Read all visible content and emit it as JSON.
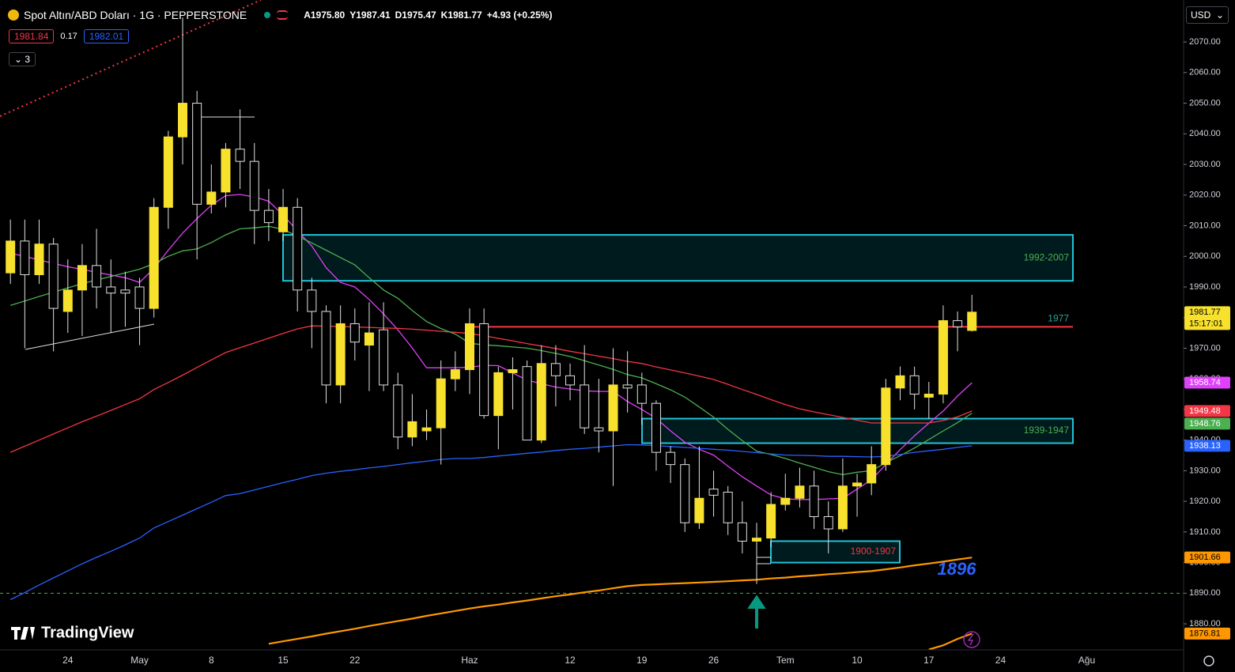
{
  "header": {
    "symbol": "Spot Altın/ABD Doları · 1G · PEPPERSTONE",
    "ohlc": [
      "A1975.80",
      "Y1987.41",
      "D1975.47",
      "K1981.77",
      "+4.93 (+0.25%)"
    ],
    "bid": "1981.84",
    "spread": "0.17",
    "ask": "1982.01",
    "indicators": "3",
    "currency": "USD",
    "logo": "TradingView"
  },
  "chart_data": {
    "type": "candlestick",
    "categories": [
      null,
      null,
      null,
      null,
      "24",
      null,
      null,
      null,
      null,
      "May",
      null,
      null,
      null,
      null,
      "8",
      null,
      null,
      null,
      null,
      "15",
      null,
      null,
      null,
      null,
      "22",
      null,
      null,
      null,
      null,
      null,
      null,
      null,
      "Haz",
      null,
      null,
      null,
      null,
      null,
      null,
      "12",
      null,
      null,
      null,
      null,
      "19",
      null,
      null,
      null,
      null,
      "26",
      null,
      null,
      null,
      null,
      "Tem",
      null,
      null,
      null,
      null,
      "10",
      null,
      null,
      null,
      null,
      "17",
      null,
      null,
      null,
      null,
      "24",
      null,
      null,
      null,
      null,
      null,
      "Ağu",
      null,
      null,
      null,
      null,
      null,
      null
    ],
    "open": [
      1994.6,
      2005,
      1994,
      2004,
      1982,
      1989,
      1997,
      1990,
      1989,
      1990,
      1983,
      2016,
      2039,
      2050,
      2017,
      2021,
      2035,
      2031,
      2015,
      2008,
      2016,
      1989,
      1982,
      1958,
      1978,
      1971,
      1976,
      1958,
      1941,
      1943,
      1944,
      1960,
      1963,
      1978,
      1948,
      1962,
      1964,
      1940,
      1965,
      1961,
      1958,
      1944,
      1943,
      1958,
      1958,
      1952,
      1936,
      1932,
      1913,
      1924,
      1923,
      1913,
      1907,
      1908,
      1919,
      1921,
      1925,
      1915,
      1911,
      1925,
      1926,
      1932,
      1957,
      1961,
      1954,
      1955,
      1979,
      1975.8,
      null,
      null,
      null,
      null,
      null,
      null,
      null,
      null,
      null,
      null,
      null,
      null,
      null,
      null
    ],
    "high": [
      2012,
      2012,
      2012,
      2006,
      1999,
      2004,
      2009,
      1999,
      1995,
      1993,
      2019,
      2041,
      2078,
      2054,
      2030,
      2037,
      2048,
      2037,
      2022,
      2022,
      2019,
      1993,
      1984,
      1984,
      1983,
      1985,
      1985,
      1962,
      1955,
      1950,
      1966,
      1969,
      1983,
      1983,
      1964,
      1967,
      1966,
      1971,
      1971,
      1965,
      1971,
      1960,
      1970,
      1969,
      1962,
      1953,
      1938,
      1934,
      1938,
      1930,
      1925,
      1920,
      1913,
      1923,
      1929,
      1931,
      1930,
      1920,
      1934,
      1929,
      1938,
      1960,
      1964,
      1964,
      1959,
      1984,
      1982,
      1987.41,
      null,
      null,
      null,
      null,
      null,
      null,
      null,
      null,
      null,
      null,
      null,
      null,
      null,
      null
    ],
    "low": [
      1991,
      1970,
      1991,
      1969,
      1975,
      1974,
      1983,
      1975,
      1977,
      1971,
      1980,
      2009,
      2030,
      1999,
      2014,
      2016,
      2022,
      2004,
      2005,
      2005,
      1982,
      1970,
      1952,
      1952,
      1966,
      1956,
      1956,
      1937,
      1938,
      1940,
      1932,
      1956,
      1955,
      1947,
      1937,
      1950,
      1940,
      1939,
      1951,
      1953,
      1942,
      1936,
      1925,
      1949,
      1945,
      1930,
      1926,
      1910,
      1911,
      1915,
      1909,
      1903,
      1893,
      1905,
      1917,
      1918,
      1911,
      1903,
      1910,
      1915,
      1922,
      1930,
      1953,
      1950,
      1947,
      1952,
      1969,
      1975.47,
      null,
      null,
      null,
      null,
      null,
      null,
      null,
      null,
      null,
      null,
      null,
      null,
      null,
      null
    ],
    "close": [
      2005,
      1994,
      2004,
      1983,
      1989,
      1997,
      1990,
      1988,
      1988,
      1983,
      2016,
      2039,
      2050,
      2017,
      2021,
      2035,
      2031,
      2015,
      2011,
      2016,
      1989,
      1982,
      1958,
      1978,
      1972,
      1975,
      1958,
      1941,
      1946,
      1944,
      1960,
      1963,
      1978,
      1948,
      1962,
      1963,
      1940,
      1965,
      1961,
      1958,
      1944,
      1943,
      1958,
      1957,
      1952,
      1936,
      1932,
      1913,
      1921,
      1922,
      1913,
      1907,
      1908,
      1919,
      1921,
      1925,
      1915,
      1911,
      1925,
      1926,
      1932,
      1957,
      1961,
      1955,
      1955,
      1979,
      1977,
      1981.77,
      null,
      null,
      null,
      null,
      null,
      null,
      null,
      null,
      null,
      null,
      null,
      null,
      null,
      null
    ],
    "up_color": "#f7e12d",
    "down_color": "#000000",
    "wick_color": "#e0e0e0",
    "countdown": "15:17:01",
    "series": [
      {
        "color": "#e040fb",
        "badge_text": "#ffffff",
        "values": [
          2001,
          2000,
          1998.8,
          1997.7,
          1996.6,
          1995.7,
          1994.8,
          1993.9,
          1993,
          1991.5,
          1996,
          2002,
          2007.6,
          2012.3,
          2016.7,
          2019.8,
          2020.2,
          2019.4,
          2018,
          2013.5,
          2008.3,
          2003.4,
          1996.3,
          1991.5,
          1990,
          1985.9,
          1981.2,
          1976,
          1970.1,
          1963.6,
          1963.6,
          1963.6,
          1963.8,
          1964.4,
          1964.3,
          1961.9,
          1959.6,
          1958.4,
          1957.3,
          1956.7,
          1956.1,
          1955.9,
          1955.9,
          1952.6,
          1950,
          1947.1,
          1943,
          1939.3,
          1937,
          1935.1,
          1931.5,
          1928,
          1925,
          1922.1,
          1920.8,
          1920.6,
          1920.6,
          1920.8,
          1921,
          1924,
          1927,
          1932,
          1936.9,
          1941.4,
          1945.5,
          1949.5,
          1954.4,
          1958.74,
          null,
          null,
          null,
          null,
          null,
          null,
          null,
          null,
          null,
          null,
          null,
          null,
          null,
          null
        ]
      },
      {
        "color": "#f23645",
        "badge_text": "#ffffff",
        "values": [
          1936,
          1938,
          1940,
          1942,
          1944,
          1946,
          1947.8,
          1949.7,
          1951.6,
          1953.5,
          1956.5,
          1958.8,
          1961.2,
          1963.7,
          1966.2,
          1968.6,
          1970.2,
          1971.7,
          1973.3,
          1974.8,
          1976.3,
          1977.3,
          1977.2,
          1977.1,
          1976.9,
          1976.8,
          1976.6,
          1976.5,
          1976.2,
          1975.9,
          1975.5,
          1975.2,
          1974.8,
          1974.1,
          1973.2,
          1972.4,
          1971.5,
          1970.7,
          1969.9,
          1969,
          1968.2,
          1967.4,
          1966.6,
          1965.7,
          1965,
          1963.9,
          1962.9,
          1961.9,
          1960.9,
          1959.8,
          1958.2,
          1956.5,
          1954.9,
          1953.2,
          1951.6,
          1950.2,
          1949.2,
          1948.3,
          1947.4,
          1946.5,
          1945.6,
          1945.6,
          1945.6,
          1945.6,
          1945.6,
          1946.4,
          1947.6,
          1949.48,
          null,
          null,
          null,
          null,
          null,
          null,
          null,
          null,
          null,
          null,
          null,
          null,
          null,
          null
        ]
      },
      {
        "color": "#4caf50",
        "badge_text": "#ffffff",
        "values": [
          1984,
          1985.4,
          1986.9,
          1988.3,
          1989.7,
          1991.1,
          1992.3,
          1993.4,
          1994.6,
          1995.8,
          1997.6,
          2000,
          2001.8,
          2002.4,
          2004.5,
          2007,
          2009,
          2009.3,
          2009.8,
          2008.8,
          2006.6,
          2004.4,
          2002,
          1999.6,
          1997.2,
          1993,
          1989,
          1986.3,
          1982.3,
          1978.7,
          1976.4,
          1974.6,
          1971.6,
          1971.1,
          1970.8,
          1970.4,
          1970,
          1969.2,
          1968.3,
          1967.3,
          1965.9,
          1964.5,
          1963.1,
          1961.4,
          1960.3,
          1958.4,
          1956.4,
          1954,
          1950.8,
          1947.5,
          1943.5,
          1939.8,
          1936.4,
          1935.3,
          1934,
          1932.5,
          1931.1,
          1929.7,
          1928.7,
          1929.5,
          1930,
          1932.6,
          1934.9,
          1937.4,
          1940.2,
          1943,
          1945.7,
          1948.76,
          null,
          null,
          null,
          null,
          null,
          null,
          null,
          null,
          null,
          null,
          null,
          null,
          null,
          null
        ]
      },
      {
        "color": "#2962ff",
        "badge_text": "#ffffff",
        "values": [
          1887.9,
          1890.2,
          1892.7,
          1895,
          1897.3,
          1899.6,
          1901.7,
          1903.7,
          1905.8,
          1908,
          1911.3,
          1913.4,
          1915.5,
          1917.6,
          1919.7,
          1921.9,
          1922.5,
          1923.7,
          1924.9,
          1926.1,
          1927.2,
          1928.4,
          1929.2,
          1929.8,
          1930.3,
          1930.9,
          1931.4,
          1932,
          1932.6,
          1933.1,
          1933.7,
          1934,
          1934,
          1934.3,
          1934.8,
          1935.2,
          1935.7,
          1936.1,
          1936.6,
          1937,
          1937.3,
          1937.7,
          1938.1,
          1938.5,
          1938.4,
          1938.2,
          1937.9,
          1937.6,
          1937.3,
          1937,
          1936.7,
          1936.3,
          1935.9,
          1935.5,
          1935.1,
          1935,
          1934.9,
          1934.7,
          1934.7,
          1934.6,
          1934.5,
          1934.7,
          1935.3,
          1936,
          1936.5,
          1937,
          1937.6,
          1938.13,
          null,
          null,
          null,
          null,
          null,
          null,
          null,
          null,
          null,
          null,
          null,
          null,
          null,
          null
        ]
      },
      {
        "color": "#ff9800",
        "badge_text": "#000000",
        "values": [
          null,
          null,
          null,
          null,
          null,
          null,
          null,
          null,
          null,
          null,
          null,
          null,
          null,
          null,
          null,
          null,
          null,
          null,
          1873.5,
          1874.3,
          1875.1,
          1875.9,
          1876.8,
          1877.6,
          1878.4,
          1879.3,
          1880.1,
          1880.9,
          1881.7,
          1882.6,
          1883.4,
          1884.2,
          1885,
          1885.7,
          1886.3,
          1887,
          1887.6,
          1888.3,
          1889,
          1889.6,
          1890.3,
          1890.9,
          1891.6,
          1892.3,
          1892.7,
          1892.9,
          1893.1,
          1893.3,
          1893.5,
          1893.7,
          1893.9,
          1894.2,
          1894.4,
          1894.8,
          1895.1,
          1895.5,
          1895.8,
          1896.2,
          1896.5,
          1896.9,
          1897.2,
          1897.8,
          1898.4,
          1899.1,
          1899.7,
          1900.3,
          1901,
          1901.66,
          null,
          null,
          null,
          null,
          null,
          null,
          null,
          null,
          null,
          null,
          null,
          null,
          null,
          null
        ]
      },
      {
        "color": "#ff9800",
        "badge_text": "#000000",
        "values": [
          null,
          null,
          null,
          null,
          null,
          null,
          null,
          null,
          null,
          null,
          null,
          null,
          null,
          null,
          null,
          null,
          null,
          null,
          null,
          null,
          null,
          null,
          null,
          null,
          null,
          null,
          null,
          null,
          null,
          null,
          null,
          null,
          null,
          null,
          null,
          null,
          null,
          null,
          null,
          null,
          null,
          null,
          null,
          null,
          null,
          null,
          null,
          null,
          null,
          null,
          null,
          null,
          null,
          null,
          null,
          null,
          null,
          null,
          null,
          null,
          null,
          null,
          null,
          null,
          1871.6,
          1873,
          1875.1,
          1876.81,
          null,
          null,
          null,
          null,
          null,
          null,
          null,
          null,
          null,
          null,
          null,
          null,
          null,
          null
        ]
      }
    ],
    "zones": [
      {
        "label": "1992-2007",
        "low": 1992,
        "high": 2007,
        "color": "#22c3d6",
        "text_color": "#4caf50"
      },
      {
        "label": "1939-1947",
        "low": 1939,
        "high": 1947,
        "color": "#22c3d6",
        "text_color": "#4caf50"
      },
      {
        "label": "1900-1907",
        "low": 1900,
        "high": 1907,
        "color": "#22c3d6",
        "text_color": "#f23645"
      }
    ],
    "levels": [
      {
        "value": 1977,
        "color": "#f23645",
        "text_color": "#26a69a",
        "dashed": false
      },
      {
        "value": 1890,
        "color": "#4caf50",
        "dashed": true
      }
    ],
    "annotation": "1896",
    "annotation_color": "#2962ff",
    "ylim": [
      1871.5,
      2083.7
    ],
    "yticks": [
      {
        "value": 1880,
        "label": "1880.00"
      },
      {
        "value": 1890,
        "label": "1890.00"
      },
      {
        "value": 1900,
        "label": "1900.00"
      },
      {
        "value": 1910,
        "label": "1910.00"
      },
      {
        "value": 1920,
        "label": "1920.00"
      },
      {
        "value": 1930,
        "label": "1930.00"
      },
      {
        "value": 1940,
        "label": "1940.00"
      },
      {
        "value": 1950,
        "label": "1950.00"
      },
      {
        "value": 1960,
        "label": "1960.00"
      },
      {
        "value": 1970,
        "label": "1970.00"
      },
      {
        "value": 1980,
        "label": "1980.00"
      },
      {
        "value": 1990,
        "label": "1990.00"
      },
      {
        "value": 2000,
        "label": "2000.00"
      },
      {
        "value": 2010,
        "label": "2010.00"
      },
      {
        "value": 2020,
        "label": "2020.00"
      },
      {
        "value": 2030,
        "label": "2030.00"
      },
      {
        "value": 2040,
        "label": "2040.00"
      },
      {
        "value": 2050,
        "label": "2050.00"
      },
      {
        "value": 2060,
        "label": "2060.00"
      },
      {
        "value": 2070,
        "label": "2070.00"
      }
    ],
    "grid": false
  }
}
